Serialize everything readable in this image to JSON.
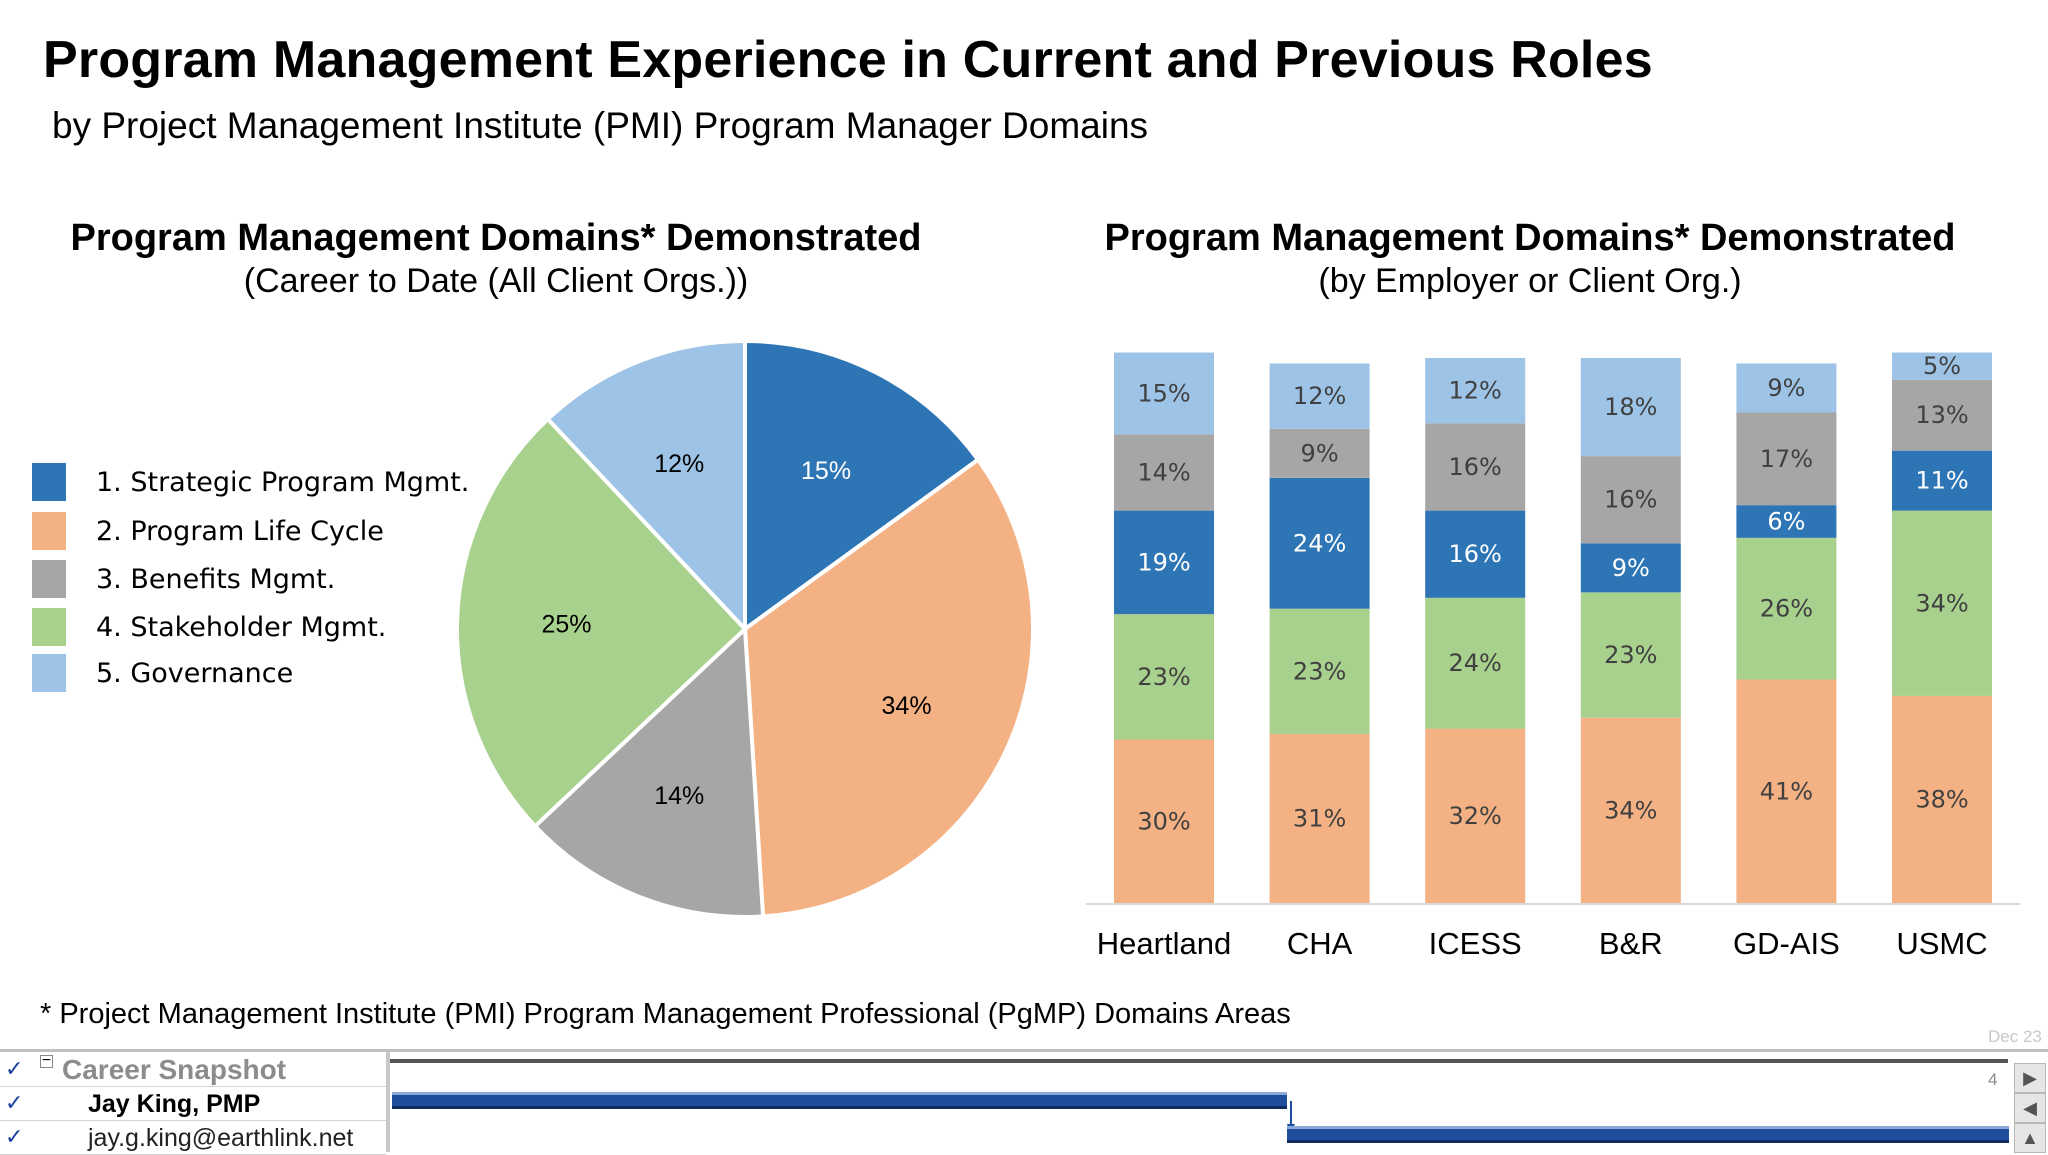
{
  "header": {
    "title": "Program Management Experience in Current and Previous Roles",
    "subtitle": "by Project Management Institute (PMI) Program Manager Domains"
  },
  "pie_panel": {
    "title": "Program Management Domains* Demonstrated",
    "subtitle": "(Career to Date (All Client Orgs.))"
  },
  "bar_panel": {
    "title": "Program Management Domains* Demonstrated",
    "subtitle": "(by Employer or Client Org.)"
  },
  "legend": [
    {
      "label": "1. Strategic Program Mgmt.",
      "color": "#2e75b6"
    },
    {
      "label": "2. Program Life Cycle",
      "color": "#f4b183"
    },
    {
      "label": "3. Benefits Mgmt.",
      "color": "#a6a6a6"
    },
    {
      "label": "4. Stakeholder Mgmt.",
      "color": "#a9d18e"
    },
    {
      "label": "5. Governance",
      "color": "#9dc3e6"
    }
  ],
  "chart_data": [
    {
      "type": "pie",
      "title": "Program Management Domains* Demonstrated",
      "subtitle": "(Career to Date (All Client Orgs.))",
      "slices": [
        {
          "name": "1. Strategic Program Mgmt.",
          "value": 15,
          "label": "15%",
          "color": "#2e75b6",
          "label_color": "#ffffff"
        },
        {
          "name": "2. Program Life Cycle",
          "value": 34,
          "label": "34%",
          "color": "#f4b183",
          "label_color": "#000000"
        },
        {
          "name": "3. Benefits Mgmt.",
          "value": 14,
          "label": "14%",
          "color": "#a6a6a6",
          "label_color": "#000000"
        },
        {
          "name": "4. Stakeholder Mgmt.",
          "value": 25,
          "label": "25%",
          "color": "#a9d18e",
          "label_color": "#000000"
        },
        {
          "name": "5. Governance",
          "value": 12,
          "label": "12%",
          "color": "#9dc3e6",
          "label_color": "#000000"
        }
      ],
      "legend_position": "left"
    },
    {
      "type": "bar",
      "stacked": true,
      "percent": true,
      "title": "Program Management Domains* Demonstrated",
      "subtitle": "(by Employer or Client Org.)",
      "categories": [
        "Heartland",
        "CHA",
        "ICESS",
        "B&R",
        "GD-AIS",
        "USMC"
      ],
      "series": [
        {
          "name": "2. Program Life Cycle",
          "values": [
            30,
            31,
            32,
            34,
            41,
            38
          ],
          "color": "#f4b183"
        },
        {
          "name": "4. Stakeholder Mgmt.",
          "values": [
            23,
            23,
            24,
            23,
            26,
            34
          ],
          "color": "#a9d18e"
        },
        {
          "name": "1. Strategic Program Mgmt.",
          "values": [
            19,
            24,
            16,
            9,
            6,
            11
          ],
          "color": "#2e75b6",
          "label_color": "#ffffff"
        },
        {
          "name": "3. Benefits Mgmt.",
          "values": [
            14,
            9,
            16,
            16,
            17,
            13
          ],
          "color": "#a6a6a6"
        },
        {
          "name": "5. Governance",
          "values": [
            15,
            12,
            12,
            18,
            9,
            5
          ],
          "color": "#9dc3e6"
        }
      ],
      "label_color": "#404040",
      "ylim": [
        0,
        100
      ],
      "grid": false
    }
  ],
  "footnote": "* Project Management Institute (PMI) Program Management Professional (PgMP) Domains Areas",
  "date_stamp": "Dec 23",
  "gantt": {
    "rows": [
      {
        "text": "Career Snapshot",
        "collapse": "−"
      },
      {
        "text": "Jay King, PMP"
      },
      {
        "text": "jay.g.king@earthlink.net"
      }
    ],
    "page_number": "4",
    "nav": {
      "next": "▶",
      "prev": "◀",
      "up": "▲"
    }
  }
}
